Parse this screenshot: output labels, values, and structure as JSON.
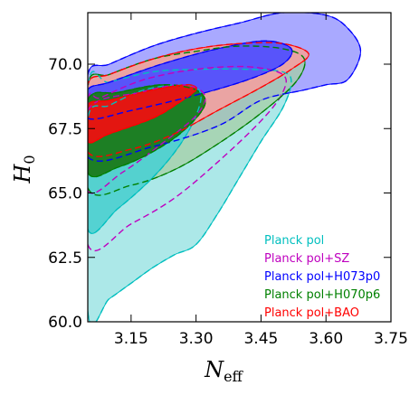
{
  "chart_data": {
    "type": "contour",
    "xlabel_main": "N",
    "xlabel_sub": "eff",
    "ylabel_main": "H",
    "ylabel_sub": "0",
    "xlim": [
      3.05,
      3.75
    ],
    "ylim": [
      60.0,
      72.0
    ],
    "xticks": [
      "3.15",
      "3.30",
      "3.45",
      "3.60",
      "3.75"
    ],
    "yticks": [
      "60.0",
      "62.5",
      "65.0",
      "67.5",
      "70.0"
    ],
    "legend_position": "lower-right",
    "series": [
      {
        "name": "Planck pol",
        "color": "#00bfbf",
        "fill68": "#4fd1d1",
        "fill95": "#a3e6e6",
        "contour95": [
          [
            3.05,
            60.4
          ],
          [
            3.1,
            60.9
          ],
          [
            3.15,
            61.5
          ],
          [
            3.2,
            62.1
          ],
          [
            3.25,
            62.6
          ],
          [
            3.3,
            63.0
          ],
          [
            3.35,
            64.2
          ],
          [
            3.4,
            65.6
          ],
          [
            3.45,
            67.0
          ],
          [
            3.5,
            68.3
          ],
          [
            3.52,
            69.3
          ],
          [
            3.5,
            69.7
          ],
          [
            3.42,
            69.8
          ],
          [
            3.3,
            69.8
          ],
          [
            3.2,
            69.7
          ],
          [
            3.1,
            69.3
          ],
          [
            3.05,
            69.0
          ]
        ],
        "contour68": [
          [
            3.05,
            63.6
          ],
          [
            3.12,
            64.4
          ],
          [
            3.2,
            65.6
          ],
          [
            3.26,
            66.8
          ],
          [
            3.3,
            68.0
          ],
          [
            3.31,
            68.9
          ],
          [
            3.27,
            69.2
          ],
          [
            3.18,
            69.0
          ],
          [
            3.1,
            68.4
          ],
          [
            3.05,
            67.9
          ]
        ]
      },
      {
        "name": "Planck pol+SZ",
        "color": "#bf00bf",
        "fill68": "#cf6fcf",
        "fill95": "#e6b3e6",
        "contour95": [
          [
            3.05,
            63.0
          ],
          [
            3.15,
            63.8
          ],
          [
            3.25,
            64.8
          ],
          [
            3.35,
            66.2
          ],
          [
            3.45,
            67.8
          ],
          [
            3.5,
            68.9
          ],
          [
            3.5,
            69.6
          ],
          [
            3.42,
            69.9
          ],
          [
            3.3,
            69.8
          ],
          [
            3.18,
            69.4
          ],
          [
            3.08,
            68.7
          ],
          [
            3.05,
            68.4
          ]
        ],
        "contour68": [
          [
            3.05,
            65.1
          ],
          [
            3.13,
            65.8
          ],
          [
            3.22,
            66.9
          ],
          [
            3.3,
            68.0
          ],
          [
            3.32,
            68.8
          ],
          [
            3.27,
            69.2
          ],
          [
            3.17,
            68.9
          ],
          [
            3.05,
            68.2
          ]
        ]
      },
      {
        "name": "Planck pol+H073p0",
        "color": "#0000ff",
        "fill68": "#5050ff",
        "fill95": "#a0a0ff",
        "contour95": [
          [
            3.05,
            66.4
          ],
          [
            3.2,
            66.8
          ],
          [
            3.35,
            67.6
          ],
          [
            3.45,
            68.6
          ],
          [
            3.55,
            69.0
          ],
          [
            3.6,
            69.2
          ],
          [
            3.65,
            69.4
          ],
          [
            3.68,
            70.5
          ],
          [
            3.65,
            71.4
          ],
          [
            3.6,
            71.9
          ],
          [
            3.5,
            72.0
          ],
          [
            3.4,
            71.6
          ],
          [
            3.3,
            71.2
          ],
          [
            3.2,
            70.7
          ],
          [
            3.1,
            70.0
          ],
          [
            3.05,
            69.6
          ]
        ],
        "contour68": [
          [
            3.05,
            67.9
          ],
          [
            3.15,
            68.2
          ],
          [
            3.3,
            68.8
          ],
          [
            3.42,
            69.4
          ],
          [
            3.5,
            70.0
          ],
          [
            3.52,
            70.6
          ],
          [
            3.46,
            70.9
          ],
          [
            3.35,
            70.6
          ],
          [
            3.22,
            70.0
          ],
          [
            3.1,
            69.3
          ],
          [
            3.05,
            69.0
          ]
        ]
      },
      {
        "name": "Planck pol+H070p6",
        "color": "#008000",
        "fill68": "#1a7a1a",
        "fill95": "#a6cfa6",
        "contour95": [
          [
            3.05,
            65.2
          ],
          [
            3.15,
            65.3
          ],
          [
            3.25,
            65.9
          ],
          [
            3.35,
            66.9
          ],
          [
            3.45,
            68.1
          ],
          [
            3.53,
            69.3
          ],
          [
            3.55,
            70.2
          ],
          [
            3.5,
            70.6
          ],
          [
            3.4,
            70.7
          ],
          [
            3.3,
            70.5
          ],
          [
            3.2,
            70.2
          ],
          [
            3.1,
            69.6
          ],
          [
            3.05,
            69.2
          ]
        ],
        "contour68": [
          [
            3.05,
            65.8
          ],
          [
            3.12,
            66.0
          ],
          [
            3.2,
            66.6
          ],
          [
            3.27,
            67.4
          ],
          [
            3.32,
            68.4
          ],
          [
            3.3,
            69.0
          ],
          [
            3.22,
            69.2
          ],
          [
            3.12,
            68.9
          ],
          [
            3.05,
            68.6
          ]
        ]
      },
      {
        "name": "Planck pol+BAO",
        "color": "#ff0000",
        "fill68": "#ee1111",
        "fill95": "#f2a0a0",
        "contour95": [
          [
            3.05,
            66.6
          ],
          [
            3.15,
            66.7
          ],
          [
            3.25,
            67.3
          ],
          [
            3.35,
            68.2
          ],
          [
            3.45,
            69.1
          ],
          [
            3.52,
            69.8
          ],
          [
            3.56,
            70.4
          ],
          [
            3.5,
            70.8
          ],
          [
            3.4,
            70.8
          ],
          [
            3.3,
            70.6
          ],
          [
            3.2,
            70.2
          ],
          [
            3.1,
            69.6
          ],
          [
            3.05,
            69.2
          ]
        ],
        "contour68": [
          [
            3.05,
            67.0
          ],
          [
            3.1,
            67.3
          ],
          [
            3.2,
            67.9
          ],
          [
            3.26,
            68.5
          ],
          [
            3.3,
            69.0
          ],
          [
            3.28,
            69.2
          ],
          [
            3.2,
            69.0
          ],
          [
            3.1,
            68.6
          ],
          [
            3.05,
            68.4
          ]
        ]
      }
    ],
    "legend": [
      {
        "label": "Planck pol",
        "color": "#00bfbf"
      },
      {
        "label": "Planck pol+SZ",
        "color": "#bf00bf"
      },
      {
        "label": "Planck pol+H073p0",
        "color": "#0000ff"
      },
      {
        "label": "Planck pol+H070p6",
        "color": "#008000"
      },
      {
        "label": "Planck pol+BAO",
        "color": "#ff0000"
      }
    ]
  }
}
